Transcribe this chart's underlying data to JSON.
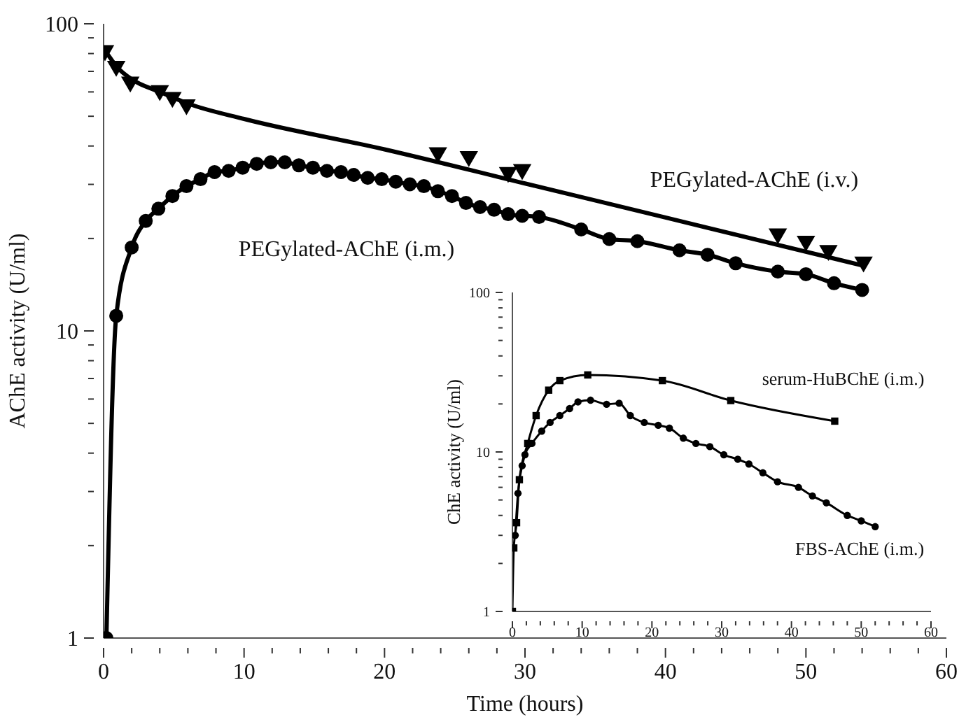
{
  "chart_data": [
    {
      "type": "line",
      "xlabel": "Time (hours)",
      "ylabel": "AChE activity (U/ml)",
      "log": "y",
      "xlim": [
        0,
        60
      ],
      "ylim": [
        1,
        100
      ],
      "xticks": [
        0,
        {
          "value": 2,
          "label": null
        },
        {
          "value": 4,
          "label": null
        },
        {
          "value": 6,
          "label": null
        },
        {
          "value": 8,
          "label": null
        },
        10,
        {
          "value": 12,
          "label": null
        },
        {
          "value": 14,
          "label": null
        },
        {
          "value": 16,
          "label": null
        },
        {
          "value": 18,
          "label": null
        },
        20,
        {
          "value": 22,
          "label": null
        },
        {
          "value": 24,
          "label": null
        },
        {
          "value": 26,
          "label": null
        },
        {
          "value": 28,
          "label": null
        },
        30,
        {
          "value": 32,
          "label": null
        },
        {
          "value": 34,
          "label": null
        },
        {
          "value": 36,
          "label": null
        },
        {
          "value": 38,
          "label": null
        },
        40,
        {
          "value": 42,
          "label": null
        },
        {
          "value": 44,
          "label": null
        },
        {
          "value": 46,
          "label": null
        },
        {
          "value": 48,
          "label": null
        },
        50,
        {
          "value": 52,
          "label": null
        },
        {
          "value": 54,
          "label": null
        },
        {
          "value": 56,
          "label": null
        },
        {
          "value": 58,
          "label": null
        },
        60
      ],
      "yticks": [
        1,
        {
          "value": 2,
          "label": null
        },
        {
          "value": 3,
          "label": null
        },
        {
          "value": 4,
          "label": null
        },
        {
          "value": 5,
          "label": null
        },
        {
          "value": 6,
          "label": null
        },
        {
          "value": 7,
          "label": null
        },
        {
          "value": 8,
          "label": null
        },
        {
          "value": 9,
          "label": null
        },
        10,
        {
          "value": 20,
          "label": null
        },
        {
          "value": 30,
          "label": null
        },
        {
          "value": 40,
          "label": null
        },
        {
          "value": 50,
          "label": null
        },
        {
          "value": 60,
          "label": null
        },
        {
          "value": 70,
          "label": null
        },
        {
          "value": 80,
          "label": null
        },
        {
          "value": 90,
          "label": null
        },
        100
      ],
      "series": [
        {
          "name": "PEGylated-AChE (i.v.)",
          "type": "scatter",
          "marker": "triangle",
          "color": "#000000",
          "x": [
            0.1,
            0.9,
            1.9,
            4,
            4.9,
            5.9,
            23.8,
            26,
            28.8,
            29.8,
            48,
            50,
            51.6,
            54.1
          ],
          "values": [
            81,
            72,
            64,
            60,
            57,
            54,
            37.7,
            36.6,
            32.5,
            33.2,
            20.5,
            19.4,
            18.1,
            16.6
          ]
        },
        {
          "marker": "none",
          "color": "#000000",
          "x": [
            0.1,
            1,
            2,
            4,
            6,
            10,
            20,
            30,
            40,
            54.1
          ],
          "values": [
            82,
            72,
            66,
            60,
            55,
            49,
            39,
            30.2,
            23.4,
            16.3
          ]
        },
        {
          "name": "PEGylated-AChE (i.m.)",
          "marker": "circle",
          "color": "#000000",
          "x": [
            0.2,
            0.9,
            2,
            3,
            3.9,
            4.9,
            5.9,
            6.9,
            7.9,
            8.9,
            9.9,
            10.9,
            11.9,
            12.9,
            13.9,
            14.9,
            15.9,
            16.9,
            17.8,
            18.8,
            19.8,
            20.8,
            21.8,
            22.8,
            23.8,
            24.8,
            25.8,
            26.8,
            27.8,
            28.8,
            29.8,
            31,
            34,
            36,
            38,
            41,
            43,
            45,
            48,
            50,
            52,
            54
          ],
          "values": [
            1,
            11.2,
            18.7,
            22.8,
            25,
            27.5,
            29.6,
            31.2,
            32.9,
            33.2,
            34,
            35,
            35.4,
            35.4,
            34.6,
            34,
            33.2,
            32.9,
            32.2,
            31.5,
            31.2,
            30.6,
            30,
            29.6,
            28.5,
            27.5,
            26.1,
            25.3,
            24.8,
            24,
            23.7,
            23.5,
            21.4,
            19.9,
            19.6,
            18.3,
            17.7,
            16.6,
            15.6,
            15.3,
            14.3,
            13.6
          ]
        }
      ]
    },
    {
      "type": "line",
      "ylabel": "ChE activity (U/ml)",
      "log": "y",
      "xlim": [
        0,
        60
      ],
      "ylim": [
        1,
        100
      ],
      "xticks": [
        0,
        {
          "value": 2,
          "label": null
        },
        {
          "value": 4,
          "label": null
        },
        {
          "value": 6,
          "label": null
        },
        {
          "value": 8,
          "label": null
        },
        10,
        {
          "value": 12,
          "label": null
        },
        {
          "value": 14,
          "label": null
        },
        {
          "value": 16,
          "label": null
        },
        {
          "value": 18,
          "label": null
        },
        20,
        {
          "value": 22,
          "label": null
        },
        {
          "value": 24,
          "label": null
        },
        {
          "value": 26,
          "label": null
        },
        {
          "value": 28,
          "label": null
        },
        30,
        {
          "value": 32,
          "label": null
        },
        {
          "value": 34,
          "label": null
        },
        {
          "value": 36,
          "label": null
        },
        {
          "value": 38,
          "label": null
        },
        40,
        {
          "value": 42,
          "label": null
        },
        {
          "value": 44,
          "label": null
        },
        {
          "value": 46,
          "label": null
        },
        {
          "value": 48,
          "label": null
        },
        50,
        {
          "value": 52,
          "label": null
        },
        {
          "value": 54,
          "label": null
        },
        {
          "value": 56,
          "label": null
        },
        {
          "value": 58,
          "label": null
        },
        60
      ],
      "yticks": [
        1,
        {
          "value": 2,
          "label": null
        },
        {
          "value": 3,
          "label": null
        },
        {
          "value": 4,
          "label": null
        },
        {
          "value": 5,
          "label": null
        },
        {
          "value": 6,
          "label": null
        },
        {
          "value": 7,
          "label": null
        },
        {
          "value": 8,
          "label": null
        },
        {
          "value": 9,
          "label": null
        },
        10,
        {
          "value": 20,
          "label": null
        },
        {
          "value": 30,
          "label": null
        },
        {
          "value": 40,
          "label": null
        },
        {
          "value": 50,
          "label": null
        },
        {
          "value": 60,
          "label": null
        },
        {
          "value": 70,
          "label": null
        },
        {
          "value": 80,
          "label": null
        },
        {
          "value": 90,
          "label": null
        },
        100
      ],
      "series": [
        {
          "name": "serum-HuBChE (i.m.)",
          "marker": "square",
          "color": "#000000",
          "x": [
            0,
            0.2,
            0.6,
            1,
            2.2,
            3.4,
            5.2,
            6.8,
            10.8,
            21.5,
            31.3,
            46.2
          ],
          "values": [
            1,
            2.5,
            3.6,
            6.7,
            11.3,
            16.9,
            24.4,
            28,
            30.4,
            28,
            21,
            15.6
          ]
        },
        {
          "name": "FBS-AChE (i.m.)",
          "marker": "circle",
          "color": "#000000",
          "x": [
            0.4,
            0.8,
            1.4,
            1.8,
            2.8,
            4.2,
            5.4,
            6.8,
            8.2,
            9.4,
            11.2,
            13.5,
            15.3,
            16.9,
            18.9,
            20.9,
            22.5,
            24.5,
            26.3,
            28.3,
            30.3,
            32.3,
            33.9,
            35.9,
            38,
            41,
            43,
            45,
            48,
            50,
            52
          ],
          "values": [
            3,
            5.5,
            8.2,
            9.6,
            11.3,
            13.5,
            15.3,
            16.9,
            18.7,
            20.6,
            21.1,
            19.9,
            20.2,
            16.9,
            15.3,
            14.7,
            14.1,
            12.2,
            11.3,
            10.8,
            9.6,
            9,
            8.4,
            7.4,
            6.5,
            6,
            5.3,
            4.8,
            4,
            3.7,
            3.4
          ]
        }
      ]
    }
  ]
}
